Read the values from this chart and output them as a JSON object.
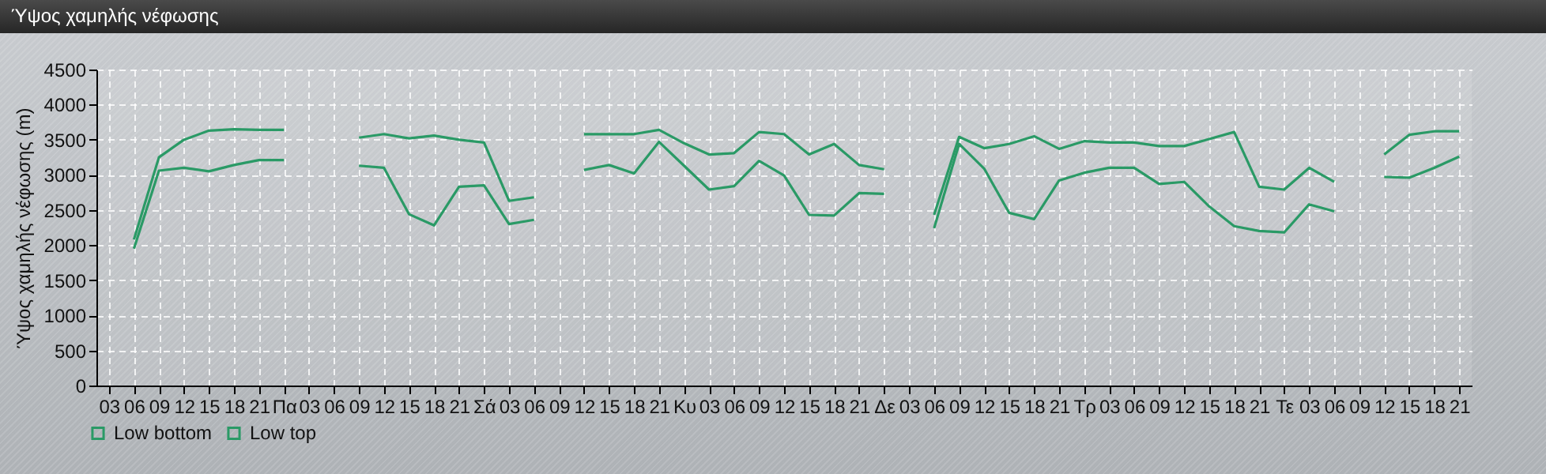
{
  "chart_data": {
    "type": "line",
    "title": "Ύψος χαμηλής νέφωσης",
    "ylabel": "Ύψος χαμηλής νέφωσης (m)",
    "categories": [
      "03",
      "06",
      "09",
      "12",
      "15",
      "18",
      "21",
      "Πα",
      "03",
      "06",
      "09",
      "12",
      "15",
      "18",
      "21",
      "Σά",
      "03",
      "06",
      "09",
      "12",
      "15",
      "18",
      "21",
      "Κυ",
      "03",
      "06",
      "09",
      "12",
      "15",
      "18",
      "21",
      "Δε",
      "03",
      "06",
      "09",
      "12",
      "15",
      "18",
      "21",
      "Τρ",
      "03",
      "06",
      "09",
      "12",
      "15",
      "18",
      "21",
      "Τε",
      "03",
      "06",
      "09",
      "12",
      "15",
      "18",
      "21"
    ],
    "series": [
      {
        "name": "Low bottom",
        "color": "#2a9a66",
        "values": [
          null,
          1950,
          3060,
          3100,
          3050,
          3140,
          3210,
          3210,
          null,
          null,
          3130,
          3100,
          2440,
          2280,
          2830,
          2850,
          2300,
          2360,
          null,
          3070,
          3140,
          3020,
          3470,
          3130,
          2790,
          2840,
          3200,
          2990,
          2430,
          2420,
          2740,
          2730,
          null,
          2240,
          3440,
          3090,
          2460,
          2370,
          2920,
          3030,
          3100,
          3100,
          2870,
          2900,
          2550,
          2270,
          2200,
          2180,
          2580,
          2480,
          null,
          2970,
          2960,
          3100,
          3260
        ]
      },
      {
        "name": "Low top",
        "color": "#2a9a66",
        "values": [
          null,
          2080,
          3250,
          3500,
          3630,
          3650,
          3640,
          3640,
          null,
          null,
          3530,
          3580,
          3520,
          3560,
          3500,
          3460,
          2630,
          2680,
          null,
          3580,
          3580,
          3580,
          3640,
          3450,
          3290,
          3310,
          3610,
          3580,
          3290,
          3440,
          3140,
          3080,
          null,
          2430,
          3540,
          3380,
          3440,
          3550,
          3370,
          3480,
          3460,
          3460,
          3410,
          3410,
          3510,
          3610,
          2830,
          2790,
          3100,
          2900,
          null,
          3290,
          3570,
          3620,
          3620
        ]
      }
    ],
    "ylim": [
      0,
      4500
    ],
    "yticks": [
      0,
      500,
      1000,
      1500,
      2000,
      2500,
      3000,
      3500,
      4000,
      4500
    ],
    "grid": true,
    "legend": "bottom left",
    "marker": "none",
    "line_style": "solid"
  }
}
